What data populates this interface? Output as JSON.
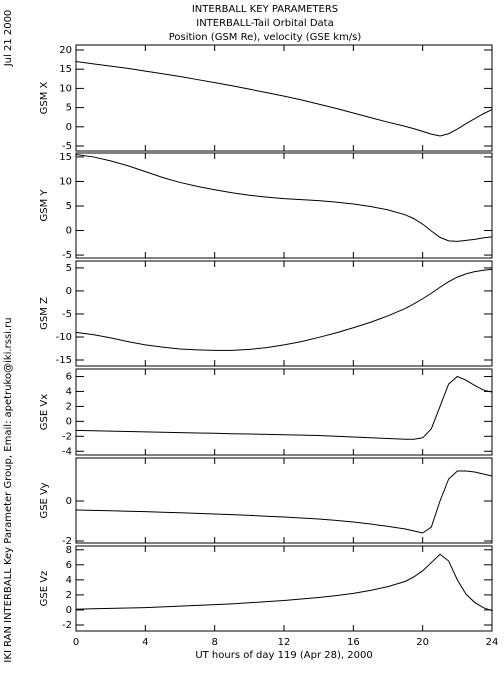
{
  "header": {
    "title": "INTERBALL KEY PARAMETERS",
    "subtitle": "INTERBALL-Tail Orbital Data",
    "caption": "Position (GSM Re), velocity (GSE km/s)"
  },
  "date": "Jul 21 2000",
  "credit": "IKI RAN INTERBALL Key Parameter Group, Email: apetruko@iki.rssi.ru",
  "chart_data": [
    {
      "type": "line",
      "ylabel": "GSM X",
      "color": "#000000",
      "x": [
        0,
        1,
        2,
        3,
        4,
        5,
        6,
        7,
        8,
        9,
        10,
        11,
        12,
        13,
        14,
        15,
        16,
        17,
        18,
        19,
        19.5,
        20,
        20.5,
        21,
        21.5,
        22,
        22.5,
        23,
        23.5,
        24
      ],
      "values": [
        17,
        16.4,
        15.8,
        15.2,
        14.5,
        13.8,
        13.1,
        12.3,
        11.5,
        10.7,
        9.8,
        8.9,
        8.0,
        7.0,
        5.9,
        4.8,
        3.6,
        2.4,
        1.2,
        0.1,
        -0.5,
        -1.2,
        -1.9,
        -2.4,
        -1.8,
        -0.6,
        0.8,
        2.1,
        3.4,
        4.5
      ],
      "xlim": [
        0,
        24
      ],
      "xticks": [
        0,
        4,
        8,
        12,
        16,
        20,
        24
      ],
      "ylim": [
        -6.3,
        21.3
      ],
      "yticks": [
        -5,
        0,
        5,
        10,
        15,
        20
      ]
    },
    {
      "type": "line",
      "ylabel": "GSM Y",
      "color": "#000000",
      "x": [
        0,
        1,
        2,
        3,
        4,
        5,
        6,
        7,
        8,
        9,
        10,
        11,
        12,
        13,
        14,
        15,
        16,
        17,
        18,
        19,
        19.5,
        20,
        20.5,
        21,
        21.5,
        22,
        22.5,
        23,
        23.5,
        24
      ],
      "values": [
        15.5,
        15,
        14.2,
        13.2,
        12,
        10.8,
        9.8,
        9,
        8.3,
        7.7,
        7.2,
        6.8,
        6.5,
        6.3,
        6.1,
        5.8,
        5.4,
        4.9,
        4.2,
        3.2,
        2.4,
        1.3,
        -0.1,
        -1.4,
        -2.1,
        -2.2,
        -2.0,
        -1.8,
        -1.5,
        -1.3
      ],
      "xlim": [
        0,
        24
      ],
      "xticks": [
        0,
        4,
        8,
        12,
        16,
        20,
        24
      ],
      "ylim": [
        -5.6,
        15.8
      ],
      "yticks": [
        -5,
        0,
        5,
        10,
        15
      ]
    },
    {
      "type": "line",
      "ylabel": "GSM Z",
      "color": "#000000",
      "x": [
        0,
        1,
        2,
        3,
        4,
        5,
        6,
        7,
        8,
        9,
        10,
        11,
        12,
        13,
        14,
        15,
        16,
        17,
        18,
        19,
        19.5,
        20,
        20.5,
        21,
        21.5,
        22,
        22.5,
        23,
        23.5,
        24
      ],
      "values": [
        -9,
        -9.5,
        -10.2,
        -11,
        -11.7,
        -12.2,
        -12.6,
        -12.8,
        -12.9,
        -12.9,
        -12.7,
        -12.3,
        -11.7,
        -11,
        -10.1,
        -9.1,
        -8,
        -6.8,
        -5.4,
        -3.8,
        -2.8,
        -1.7,
        -0.5,
        0.8,
        2,
        3,
        3.7,
        4.2,
        4.5,
        4.7
      ],
      "xlim": [
        0,
        24
      ],
      "xticks": [
        0,
        4,
        8,
        12,
        16,
        20,
        24
      ],
      "ylim": [
        -16.3,
        6.5
      ],
      "yticks": [
        -15,
        -10,
        -5,
        0,
        5
      ]
    },
    {
      "type": "line",
      "ylabel": "GSE Vx",
      "color": "#000000",
      "x": [
        0,
        1,
        2,
        3,
        4,
        5,
        6,
        7,
        8,
        9,
        10,
        11,
        12,
        13,
        14,
        15,
        16,
        17,
        18,
        19,
        19.5,
        20,
        20.5,
        21,
        21.5,
        22,
        22.5,
        23,
        23.5,
        24
      ],
      "values": [
        -1.2,
        -1.25,
        -1.3,
        -1.35,
        -1.4,
        -1.45,
        -1.5,
        -1.55,
        -1.6,
        -1.65,
        -1.7,
        -1.75,
        -1.8,
        -1.85,
        -1.9,
        -2,
        -2.1,
        -2.2,
        -2.3,
        -2.4,
        -2.4,
        -2.2,
        -1,
        2,
        5,
        6,
        5.5,
        4.8,
        4.2,
        3.9
      ],
      "xlim": [
        0,
        24
      ],
      "xticks": [
        0,
        4,
        8,
        12,
        16,
        20,
        24
      ],
      "ylim": [
        -4.5,
        7
      ],
      "yticks": [
        -4,
        -2,
        0,
        2,
        4,
        6
      ]
    },
    {
      "type": "line",
      "ylabel": "GSE Vy",
      "color": "#000000",
      "x": [
        0,
        1,
        2,
        3,
        4,
        5,
        6,
        7,
        8,
        9,
        10,
        11,
        12,
        13,
        14,
        15,
        16,
        17,
        18,
        19,
        19.5,
        20,
        20.5,
        21,
        21.5,
        22,
        22.5,
        23,
        23.5,
        24
      ],
      "values": [
        -0.45,
        -0.47,
        -0.49,
        -0.51,
        -0.53,
        -0.56,
        -0.59,
        -0.62,
        -0.65,
        -0.68,
        -0.72,
        -0.76,
        -0.8,
        -0.85,
        -0.9,
        -0.97,
        -1.05,
        -1.15,
        -1.27,
        -1.4,
        -1.5,
        -1.6,
        -1.3,
        0,
        1.1,
        1.5,
        1.5,
        1.45,
        1.35,
        1.25
      ],
      "xlim": [
        0,
        24
      ],
      "xticks": [
        0,
        4,
        8,
        12,
        16,
        20,
        24
      ],
      "ylim": [
        -2.1,
        2.15
      ],
      "yticks": [
        -2,
        0
      ]
    },
    {
      "type": "line",
      "ylabel": "GSE Vz",
      "color": "#000000",
      "x": [
        0,
        1,
        2,
        3,
        4,
        5,
        6,
        7,
        8,
        9,
        10,
        11,
        12,
        13,
        14,
        15,
        16,
        17,
        18,
        19,
        19.5,
        20,
        20.5,
        21,
        21.5,
        22,
        22.5,
        23,
        23.5,
        24
      ],
      "values": [
        0.1,
        0.15,
        0.2,
        0.25,
        0.3,
        0.4,
        0.5,
        0.6,
        0.7,
        0.8,
        0.95,
        1.1,
        1.25,
        1.45,
        1.65,
        1.9,
        2.2,
        2.6,
        3.1,
        3.8,
        4.4,
        5.2,
        6.3,
        7.4,
        6.5,
        4,
        2.1,
        1,
        0.3,
        -0.1
      ],
      "xlim": [
        0,
        24
      ],
      "xticks": [
        0,
        4,
        8,
        12,
        16,
        20,
        24
      ],
      "ylim": [
        -2.8,
        8.5
      ],
      "yticks": [
        -2,
        0,
        2,
        4,
        6,
        8
      ],
      "xlabel": "UT hours of day 119 (Apr 28), 2000"
    }
  ]
}
